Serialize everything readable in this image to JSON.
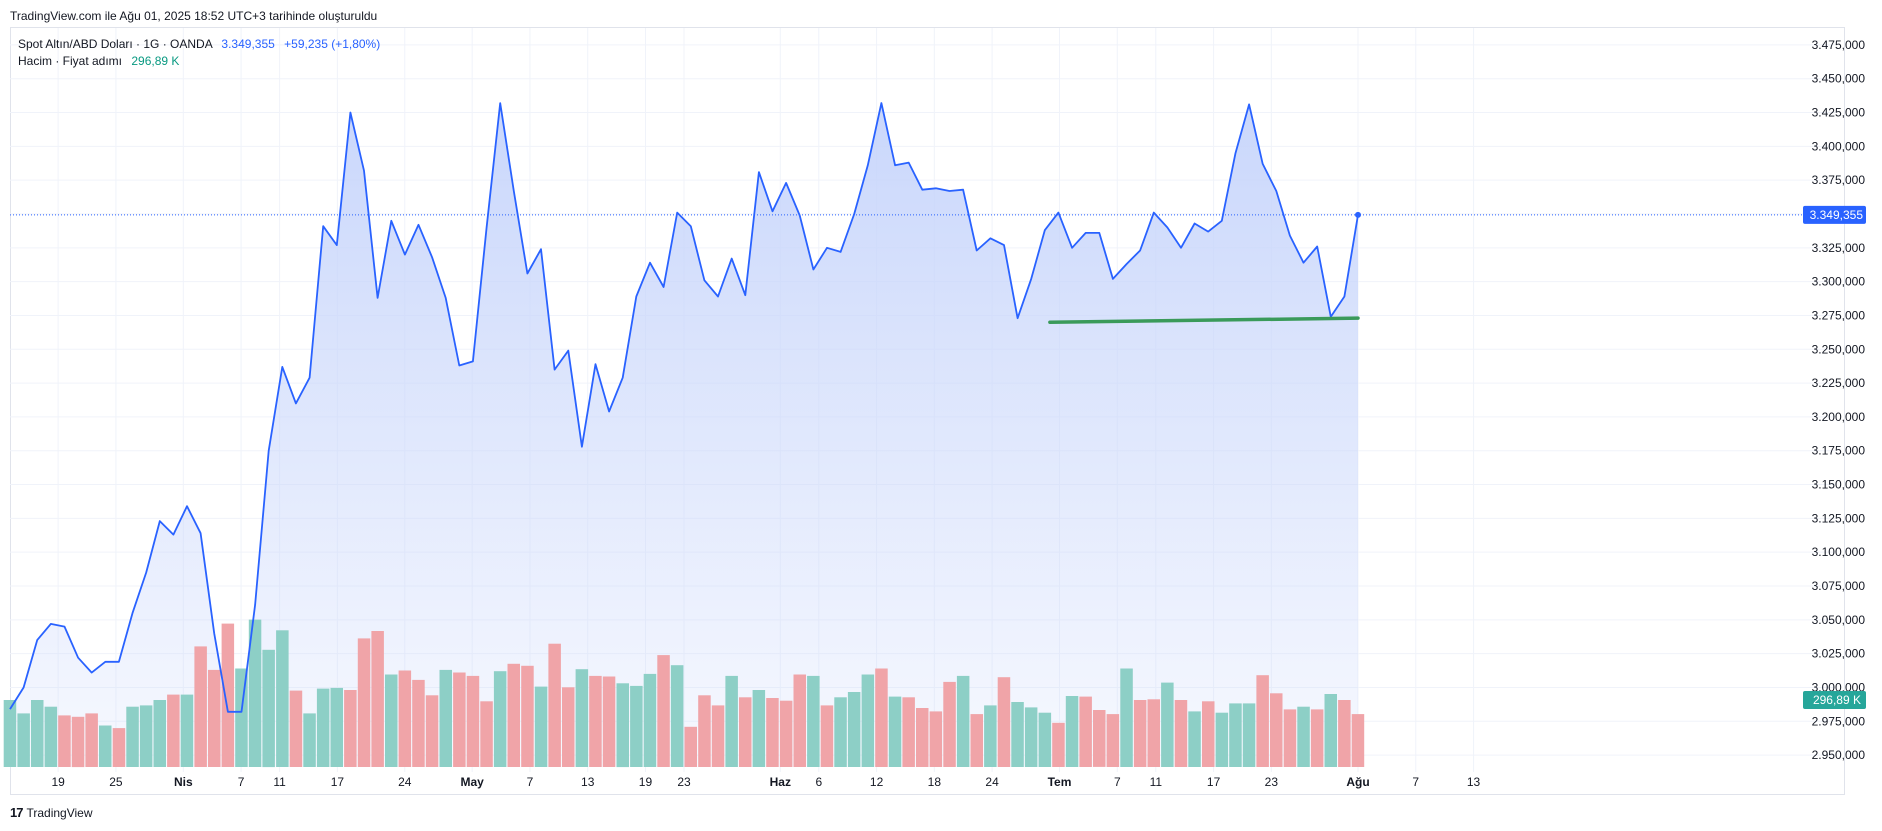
{
  "caption": "TradingView.com ile Ağu 01, 2025 18:52 UTC+3 tarihinde oluşturuldu",
  "legend": {
    "symbol": "Spot Altın/ABD Doları · 1G · OANDA",
    "price": "3.349,355",
    "change": "+59,235 (+1,80%)",
    "volume_label": "Hacim · Fiyat adımı",
    "volume_value": "296,89 K"
  },
  "footer": {
    "brand": "TradingView",
    "logo": "17"
  },
  "colors": {
    "line": "#2962ff",
    "area_top": "#c7d5fb",
    "vol_up": "#8dcfc6",
    "vol_down": "#f0a4a8",
    "support": "#3a9a5a",
    "grid": "#f0f3fa",
    "axis_text": "#131722"
  },
  "chart_data": {
    "type": "area",
    "title": "Spot Altın/ABD Doları · 1G · OANDA",
    "y_axis_position": "right",
    "ylim": [
      2937500,
      3487500
    ],
    "yticks": [
      2950000,
      2975000,
      3000000,
      3025000,
      3050000,
      3075000,
      3100000,
      3125000,
      3150000,
      3175000,
      3200000,
      3225000,
      3250000,
      3275000,
      3300000,
      3325000,
      3350000,
      3375000,
      3400000,
      3425000,
      3450000,
      3475000
    ],
    "ytick_labels": [
      "2.950,000",
      "2.975,000",
      "3.000,000",
      "3.025,000",
      "3.050,000",
      "3.075,000",
      "3.100,000",
      "3.125,000",
      "3.150,000",
      "3.175,000",
      "3.200,000",
      "3.225,000",
      "3.250,000",
      "3.275,000",
      "3.300,000",
      "3.325,000",
      "3.350,000",
      "3.375,000",
      "3.400,000",
      "3.425,000",
      "3.450,000",
      "3.475,000"
    ],
    "x_ticks": [
      {
        "date": "2025-03-19",
        "label": "19",
        "bold": false
      },
      {
        "date": "2025-03-25",
        "label": "25",
        "bold": false
      },
      {
        "date": "2025-04-01",
        "label": "Nis",
        "bold": true
      },
      {
        "date": "2025-04-07",
        "label": "7",
        "bold": false
      },
      {
        "date": "2025-04-11",
        "label": "11",
        "bold": false
      },
      {
        "date": "2025-04-17",
        "label": "17",
        "bold": false
      },
      {
        "date": "2025-04-24",
        "label": "24",
        "bold": false
      },
      {
        "date": "2025-05-01",
        "label": "May",
        "bold": true
      },
      {
        "date": "2025-05-07",
        "label": "7",
        "bold": false
      },
      {
        "date": "2025-05-13",
        "label": "13",
        "bold": false
      },
      {
        "date": "2025-05-19",
        "label": "19",
        "bold": false
      },
      {
        "date": "2025-05-23",
        "label": "23",
        "bold": false
      },
      {
        "date": "2025-06-02",
        "label": "Haz",
        "bold": true
      },
      {
        "date": "2025-06-06",
        "label": "6",
        "bold": false
      },
      {
        "date": "2025-06-12",
        "label": "12",
        "bold": false
      },
      {
        "date": "2025-06-18",
        "label": "18",
        "bold": false
      },
      {
        "date": "2025-06-24",
        "label": "24",
        "bold": false
      },
      {
        "date": "2025-07-01",
        "label": "Tem",
        "bold": true
      },
      {
        "date": "2025-07-07",
        "label": "7",
        "bold": false
      },
      {
        "date": "2025-07-11",
        "label": "11",
        "bold": false
      },
      {
        "date": "2025-07-17",
        "label": "17",
        "bold": false
      },
      {
        "date": "2025-07-23",
        "label": "23",
        "bold": false
      },
      {
        "date": "2025-08-01",
        "label": "Ağu",
        "bold": true
      },
      {
        "date": "2025-08-07",
        "label": "7",
        "bold": false
      },
      {
        "date": "2025-08-13",
        "label": "13",
        "bold": false
      }
    ],
    "series": [
      {
        "values": [
          2984000,
          3000000,
          3035000,
          3047000,
          3045000,
          3022000,
          3011000,
          3019000,
          3019000,
          3055000,
          3085000,
          3123000,
          3113000,
          3134000,
          3114000,
          3040000,
          2982000,
          2982000,
          3061000,
          3175000,
          3237000,
          3210000,
          3229000,
          3341000,
          3327000,
          3425000,
          3382000,
          3288000,
          3345000,
          3320000,
          3342000,
          3318000,
          3288000,
          3238000,
          3241000,
          3340000,
          3432000,
          3367000,
          3306000,
          3324000,
          3235000,
          3249000,
          3178000,
          3239000,
          3204000,
          3229000,
          3289000,
          3314000,
          3296000,
          3351000,
          3341000,
          3301000,
          3289000,
          3317000,
          3290000,
          3381000,
          3352000,
          3373000,
          3349000,
          3309000,
          3325000,
          3322000,
          3350000,
          3386000,
          3432000,
          3386000,
          3388000,
          3368000,
          3369000,
          3367000,
          3368000,
          3323000,
          3332000,
          3327000,
          3273000,
          3302000,
          3338000,
          3351000,
          3325000,
          3336000,
          3336000,
          3302000,
          3313000,
          3323000,
          3351000,
          3340000,
          3325000,
          3343000,
          3337000,
          3345000,
          3395000,
          3431000,
          3387000,
          3367000,
          3334000,
          3314000,
          3326000,
          3274000,
          3289000,
          3349355
        ]
      }
    ],
    "volume": {
      "up": [
        true,
        true,
        true,
        true,
        false,
        false,
        false,
        true,
        false,
        true,
        true,
        true,
        false,
        true,
        false,
        false,
        false,
        true,
        true,
        true,
        true,
        false,
        true,
        true,
        true,
        false,
        false,
        false,
        true,
        false,
        false,
        false,
        true,
        false,
        false,
        false,
        true,
        false,
        false,
        true,
        false,
        false,
        true,
        false,
        false,
        true,
        true,
        true,
        false,
        true,
        false,
        false,
        false,
        true,
        false,
        true,
        false,
        false,
        false,
        true,
        false,
        true,
        true,
        true,
        false,
        true,
        false,
        false,
        false,
        false,
        true,
        false,
        true,
        false,
        true,
        true,
        true,
        false,
        true,
        false,
        false,
        false,
        true,
        false,
        false,
        true,
        false,
        true,
        false,
        true,
        true,
        true,
        false,
        false,
        false,
        true,
        false,
        true,
        false,
        false
      ],
      "values": [
        1.0,
        0.8,
        1.0,
        0.9,
        0.77,
        0.75,
        0.8,
        0.62,
        0.58,
        0.9,
        0.92,
        1.0,
        1.08,
        1.08,
        1.8,
        1.45,
        2.14,
        1.47,
        2.2,
        1.75,
        2.04,
        1.14,
        0.8,
        1.17,
        1.18,
        1.15,
        1.92,
        2.03,
        1.38,
        1.44,
        1.3,
        1.07,
        1.45,
        1.41,
        1.36,
        0.98,
        1.43,
        1.54,
        1.51,
        1.2,
        1.84,
        1.19,
        1.46,
        1.36,
        1.35,
        1.25,
        1.21,
        1.39,
        1.67,
        1.52,
        0.6,
        1.07,
        0.92,
        1.36,
        1.04,
        1.15,
        1.03,
        0.99,
        1.38,
        1.36,
        0.92,
        1.04,
        1.12,
        1.38,
        1.47,
        1.05,
        1.04,
        0.88,
        0.83,
        1.27,
        1.36,
        0.79,
        0.92,
        1.34,
        0.97,
        0.89,
        0.81,
        0.66,
        1.06,
        1.05,
        0.85,
        0.79,
        1.47,
        1.0,
        1.01,
        1.26,
        1.0,
        0.83,
        0.98,
        0.81,
        0.95,
        0.95,
        1.37,
        1.1,
        0.86,
        0.9,
        0.86,
        1.09,
        1.0,
        0.79
      ]
    },
    "first_bar_date": "2025-03-14",
    "last_bar_date": "2025-08-01",
    "support_line": {
      "from_date": "2025-06-30",
      "to_date": "2025-08-01",
      "y_start": 3270000,
      "y_end": 3273000
    },
    "price_label": "3.349,355",
    "volume_label": "296,89 K"
  }
}
